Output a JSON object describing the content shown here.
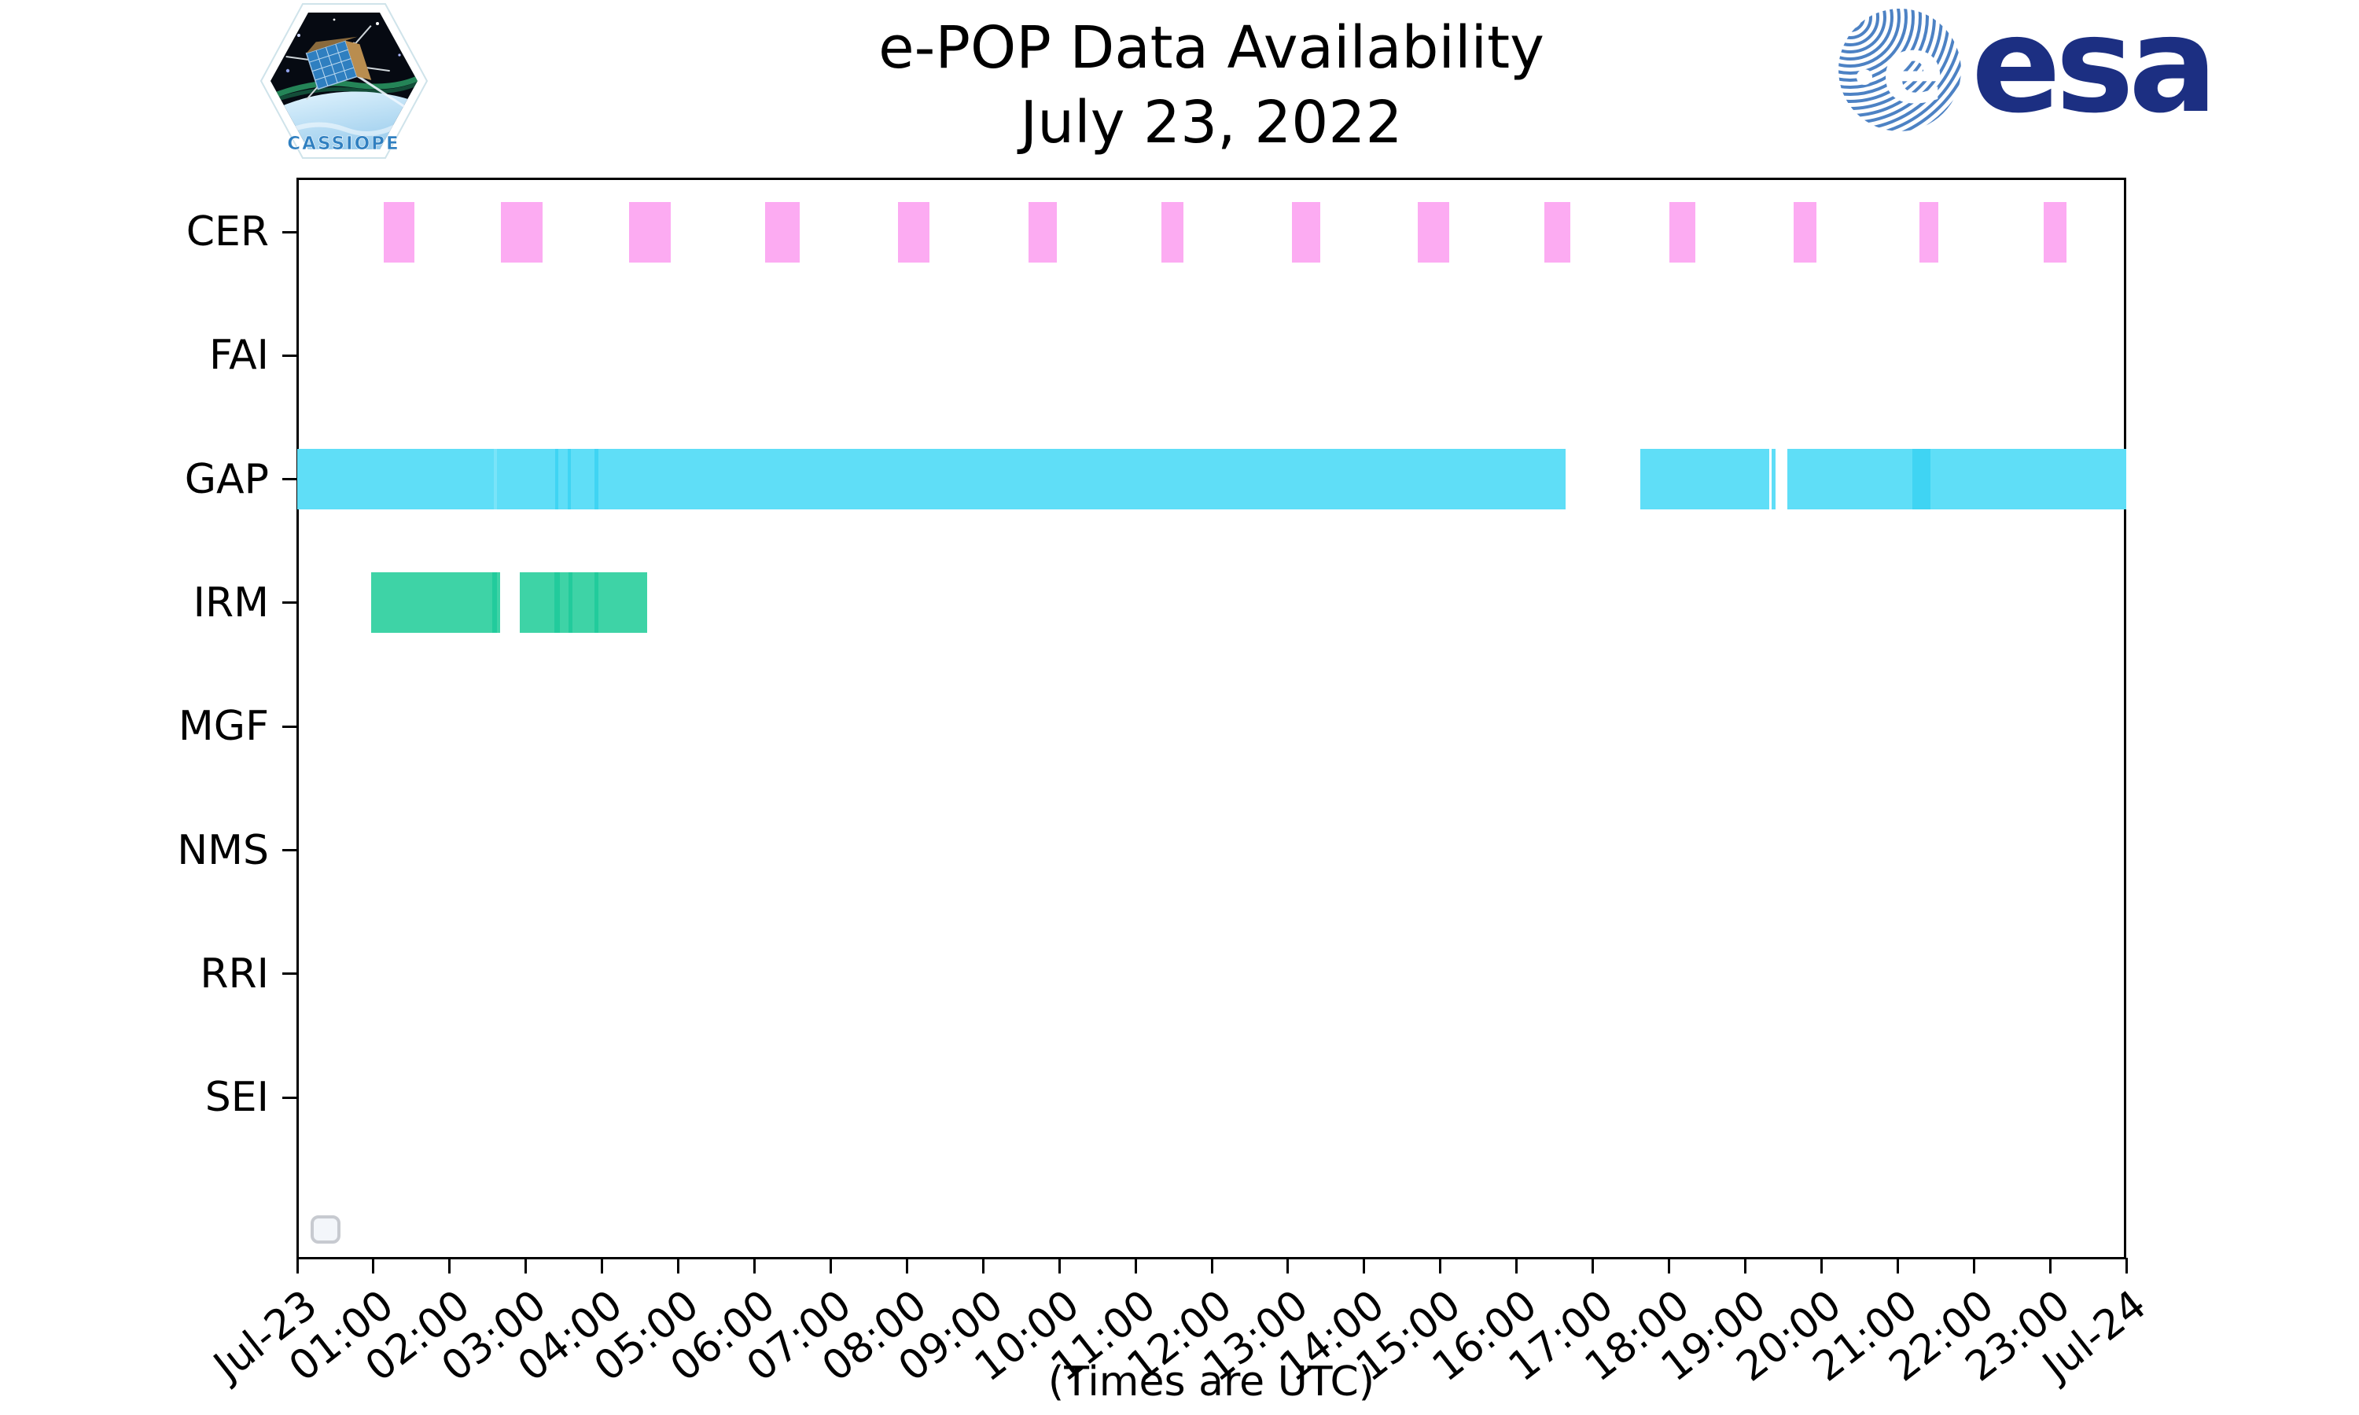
{
  "chart_data": {
    "type": "timeline",
    "title": "e-POP Data Availability",
    "subtitle": "July 23, 2022",
    "xlabel": "(Times are UTC)",
    "x_axis": {
      "start_label": "Jul-23",
      "end_label": "Jul-24",
      "range_hours": [
        0,
        24
      ],
      "times_are_utc": true,
      "tick_labels": [
        "Jul-23",
        "01:00",
        "02:00",
        "03:00",
        "04:00",
        "05:00",
        "06:00",
        "07:00",
        "08:00",
        "09:00",
        "10:00",
        "11:00",
        "12:00",
        "13:00",
        "14:00",
        "15:00",
        "16:00",
        "17:00",
        "18:00",
        "19:00",
        "20:00",
        "21:00",
        "22:00",
        "23:00",
        "Jul-24"
      ]
    },
    "rows": [
      "CER",
      "FAI",
      "GAP",
      "IRM",
      "MGF",
      "NMS",
      "RRI",
      "SEI"
    ],
    "empty_rows": [
      "FAI",
      "MGF",
      "NMS",
      "RRI",
      "SEI"
    ],
    "series": [
      {
        "instrument": "CER",
        "color": "#fcabf2",
        "intervals": [
          {
            "start": "01:08",
            "end": "01:32",
            "s": 1.14,
            "e": 1.54
          },
          {
            "start": "02:40",
            "end": "03:13",
            "s": 2.67,
            "e": 3.22
          },
          {
            "start": "04:21",
            "end": "04:54",
            "s": 4.35,
            "e": 4.9
          },
          {
            "start": "06:08",
            "end": "06:35",
            "s": 6.14,
            "e": 6.59
          },
          {
            "start": "07:53",
            "end": "08:18",
            "s": 7.88,
            "e": 8.3
          },
          {
            "start": "09:36",
            "end": "09:58",
            "s": 9.6,
            "e": 9.97
          },
          {
            "start": "11:20",
            "end": "11:38",
            "s": 11.34,
            "e": 11.63
          },
          {
            "start": "13:03",
            "end": "13:25",
            "s": 13.05,
            "e": 13.42
          },
          {
            "start": "14:42",
            "end": "15:07",
            "s": 14.7,
            "e": 15.12
          },
          {
            "start": "16:22",
            "end": "16:43",
            "s": 16.36,
            "e": 16.71
          },
          {
            "start": "18:01",
            "end": "18:21",
            "s": 18.01,
            "e": 18.35
          },
          {
            "start": "19:38",
            "end": "19:56",
            "s": 19.64,
            "e": 19.93
          },
          {
            "start": "21:17",
            "end": "21:32",
            "s": 21.29,
            "e": 21.53
          },
          {
            "start": "22:55",
            "end": "23:13",
            "s": 22.92,
            "e": 23.22
          }
        ]
      },
      {
        "instrument": "GAP",
        "color": "#5fdef7",
        "intervals": [
          {
            "start": "00:00",
            "end": "16:38",
            "s": 0.0,
            "e": 16.64
          },
          {
            "start": "17:37",
            "end": "19:19",
            "s": 17.62,
            "e": 19.32
          },
          {
            "start": "19:21",
            "end": "19:24",
            "s": 19.35,
            "e": 19.4
          },
          {
            "start": "19:33",
            "end": "24:00",
            "s": 19.55,
            "e": 24.0
          }
        ]
      },
      {
        "instrument": "IRM",
        "color": "#3ed3a6",
        "intervals": [
          {
            "start": "00:58",
            "end": "02:40",
            "s": 0.97,
            "e": 2.66
          },
          {
            "start": "02:55",
            "end": "04:35",
            "s": 2.92,
            "e": 4.59
          }
        ]
      }
    ],
    "seams": [
      {
        "instrument": "GAP",
        "s": 2.58,
        "e": 2.62,
        "color": "#79e4f9"
      },
      {
        "instrument": "GAP",
        "s": 3.38,
        "e": 3.43,
        "color": "#3fd4f3"
      },
      {
        "instrument": "GAP",
        "s": 3.55,
        "e": 3.59,
        "color": "#3fd4f3"
      },
      {
        "instrument": "GAP",
        "s": 3.9,
        "e": 3.95,
        "color": "#3fd4f3"
      },
      {
        "instrument": "GAP",
        "s": 21.19,
        "e": 21.43,
        "color": "#3fd4f3"
      },
      {
        "instrument": "IRM",
        "s": 2.56,
        "e": 2.62,
        "color": "#22cb9c"
      },
      {
        "instrument": "IRM",
        "s": 3.37,
        "e": 3.45,
        "color": "#22cb9c"
      },
      {
        "instrument": "IRM",
        "s": 3.56,
        "e": 3.61,
        "color": "#22cb9c"
      },
      {
        "instrument": "IRM",
        "s": 3.9,
        "e": 3.95,
        "color": "#22cb9c"
      }
    ],
    "legend": {
      "visible": true,
      "entries": []
    }
  },
  "logos": {
    "esa_text": "esa",
    "patch_label": "CASSIOPE"
  },
  "colors": {
    "cer": "#fcabf2",
    "gap": "#5fdef7",
    "gap_dark": "#3fd4f3",
    "irm": "#3ed3a6",
    "irm_dark": "#22cb9c",
    "axis": "#000000",
    "esa_navy": "#1c2f82",
    "esa_stripe": "#4d82c4",
    "patch_text": "#2f7fc0"
  }
}
